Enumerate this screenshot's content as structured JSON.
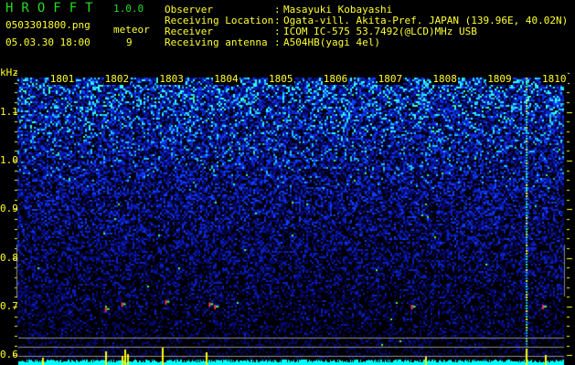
{
  "header": {
    "app_name": "HROFFT",
    "version": "1.0.0",
    "filename": "0503301800.png",
    "datetime": "05.03.30 18:00",
    "meteor_label": "meteor",
    "meteor_count": "9"
  },
  "station": {
    "rows": [
      {
        "label": "Observer",
        "value": "Masayuki Kobayashi"
      },
      {
        "label": "Receiving Location",
        "value": "Ogata-vill. Akita-Pref. JAPAN (139.96E, 40.02N)"
      },
      {
        "label": "Receiver",
        "value": "ICOM IC-575 53.7492(@LCD)MHz USB"
      },
      {
        "label": "Receiving antenna",
        "value": "A504HB(yagi 4el)"
      }
    ]
  },
  "chart_data": {
    "type": "heatmap",
    "ylabel": "kHz",
    "yticks": [
      "1.1",
      "1.0",
      "0.9",
      "0.8",
      "0.7",
      "0.6"
    ],
    "ylim": [
      0.58,
      1.18
    ],
    "xticks": [
      "1801",
      "1802",
      "1803",
      "1804",
      "1805",
      "1806",
      "1807",
      "1808",
      "1809",
      "1810"
    ],
    "xlim_minutes": [
      0,
      10
    ],
    "interference_line_minute": 9.3,
    "meteor_echoes": [
      {
        "minute": 1.6,
        "khz": 0.695
      },
      {
        "minute": 1.9,
        "khz": 0.705
      },
      {
        "minute": 2.7,
        "khz": 0.71
      },
      {
        "minute": 3.5,
        "khz": 0.705
      },
      {
        "minute": 3.6,
        "khz": 0.7
      },
      {
        "minute": 7.2,
        "khz": 0.7
      },
      {
        "minute": 9.6,
        "khz": 0.7
      }
    ],
    "spikes_minutes": [
      0.45,
      1.6,
      1.9,
      1.95,
      2.0,
      2.65,
      3.45,
      7.45,
      9.3,
      9.65
    ],
    "colors": {
      "noise": "#1030ff",
      "bright": "#00ffff",
      "echo": "#ff3060",
      "histogram": "#00ffff",
      "spike": "#ffff00",
      "text": "#ffff33",
      "title": "#22dd22"
    }
  }
}
